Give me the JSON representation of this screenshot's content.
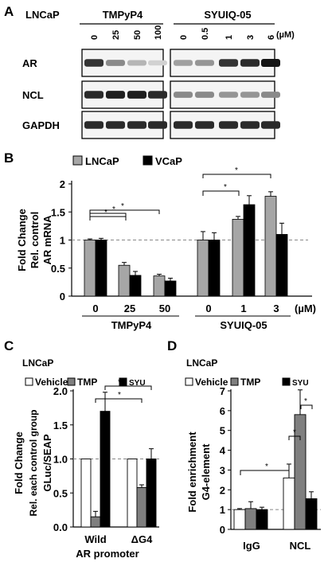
{
  "panelA": {
    "letter": "A",
    "cell_line": "LNCaP",
    "drug1": "TMPyP4",
    "drug2": "SYUIQ-05",
    "unit": "(µM)",
    "doses1": [
      "0",
      "25",
      "50",
      "100"
    ],
    "doses2": [
      "0",
      "0.5",
      "1",
      "3",
      "6"
    ],
    "rows": [
      "AR",
      "NCL",
      "GAPDH"
    ],
    "band_intensity": {
      "AR": {
        "TMPyP4": [
          0.85,
          0.45,
          0.25,
          0.12
        ],
        "SYUIQ-05": [
          0.35,
          0.4,
          0.85,
          0.9,
          1.0
        ]
      },
      "NCL": {
        "TMPyP4": [
          0.9,
          0.95,
          0.95,
          0.9
        ],
        "SYUIQ-05": [
          0.45,
          0.45,
          0.4,
          0.4,
          0.45
        ]
      },
      "GAPDH": {
        "TMPyP4": [
          0.9,
          0.9,
          0.9,
          0.9
        ],
        "SYUIQ-05": [
          0.9,
          0.9,
          0.9,
          0.9,
          0.9
        ]
      }
    }
  },
  "panelB": {
    "letter": "B"
  },
  "panelC": {
    "letter": "C",
    "cell_line": "LNCaP"
  },
  "panelD": {
    "letter": "D",
    "cell_line": "LNCaP"
  },
  "colors": {
    "gray": "#a6a6a6",
    "darkgray": "#7f7f7f",
    "black": "#000000",
    "white": "#ffffff"
  },
  "chart_data": [
    {
      "id": "B",
      "type": "bar",
      "legend": [
        "LNCaP",
        "VCaP"
      ],
      "ylabel": [
        "Fold Change",
        "Rel. control",
        "AR mRNA"
      ],
      "ylim": [
        0,
        2
      ],
      "yticks": [
        "0",
        "0.5",
        "1",
        "1.5",
        "2"
      ],
      "reference_line": 1,
      "categories": [
        "0",
        "25",
        "50",
        "0",
        "1",
        "3"
      ],
      "unit_label": "(µM)",
      "groups": [
        {
          "label": "TMPyP4"
        },
        {
          "label": "SYUIQ-05"
        }
      ],
      "series": [
        {
          "name": "LNCaP",
          "color": "#a6a6a6",
          "values": [
            1.0,
            0.55,
            0.36,
            1.0,
            1.37,
            1.78
          ],
          "errors": [
            0.02,
            0.05,
            0.03,
            0.15,
            0.05,
            0.08
          ]
        },
        {
          "name": "VCaP",
          "color": "#000000",
          "values": [
            1.0,
            0.37,
            0.27,
            1.0,
            1.63,
            1.1
          ],
          "errors": [
            0.03,
            0.07,
            0.05,
            0.13,
            0.16,
            0.2
          ]
        }
      ],
      "significance_marks": "*"
    },
    {
      "id": "C",
      "type": "bar",
      "legend": [
        "Vehicle",
        "TMP",
        "SYU"
      ],
      "ylabel": [
        "Fold Change",
        "Rel. each control group",
        "GLuc/SEAP"
      ],
      "ylim": [
        0,
        2
      ],
      "yticks": [
        "0.0",
        "0.5",
        "1.0",
        "1.5",
        "2.0"
      ],
      "reference_line": 1,
      "categories": [
        "Wild",
        "ΔG4"
      ],
      "xlabel": "AR promoter",
      "series": [
        {
          "name": "Vehicle",
          "color": "#ffffff",
          "values": [
            1.0,
            1.0
          ],
          "errors": [
            0,
            0
          ]
        },
        {
          "name": "TMP",
          "color": "#7f7f7f",
          "values": [
            0.15,
            0.58
          ],
          "errors": [
            0.08,
            0.04
          ]
        },
        {
          "name": "SYU",
          "color": "#000000",
          "values": [
            1.7,
            1.0
          ],
          "errors": [
            0.28,
            0.15
          ]
        }
      ],
      "significance_marks": "*"
    },
    {
      "id": "D",
      "type": "bar",
      "legend": [
        "Vehicle",
        "TMP",
        "SYU"
      ],
      "ylabel": [
        "Fold enrichment",
        "G4-element"
      ],
      "ylim": [
        0,
        7
      ],
      "yticks": [
        "0",
        "1",
        "2",
        "3",
        "4",
        "5",
        "6",
        "7"
      ],
      "reference_line": 1,
      "categories": [
        "IgG",
        "NCL"
      ],
      "series": [
        {
          "name": "Vehicle",
          "color": "#ffffff",
          "values": [
            1.0,
            2.6
          ],
          "errors": [
            0.05,
            0.7
          ]
        },
        {
          "name": "TMP",
          "color": "#7f7f7f",
          "values": [
            1.05,
            5.8
          ],
          "errors": [
            0.35,
            1.25
          ]
        },
        {
          "name": "SYU",
          "color": "#000000",
          "values": [
            1.0,
            1.55
          ],
          "errors": [
            0.12,
            0.35
          ]
        }
      ],
      "significance_marks": "*"
    }
  ]
}
